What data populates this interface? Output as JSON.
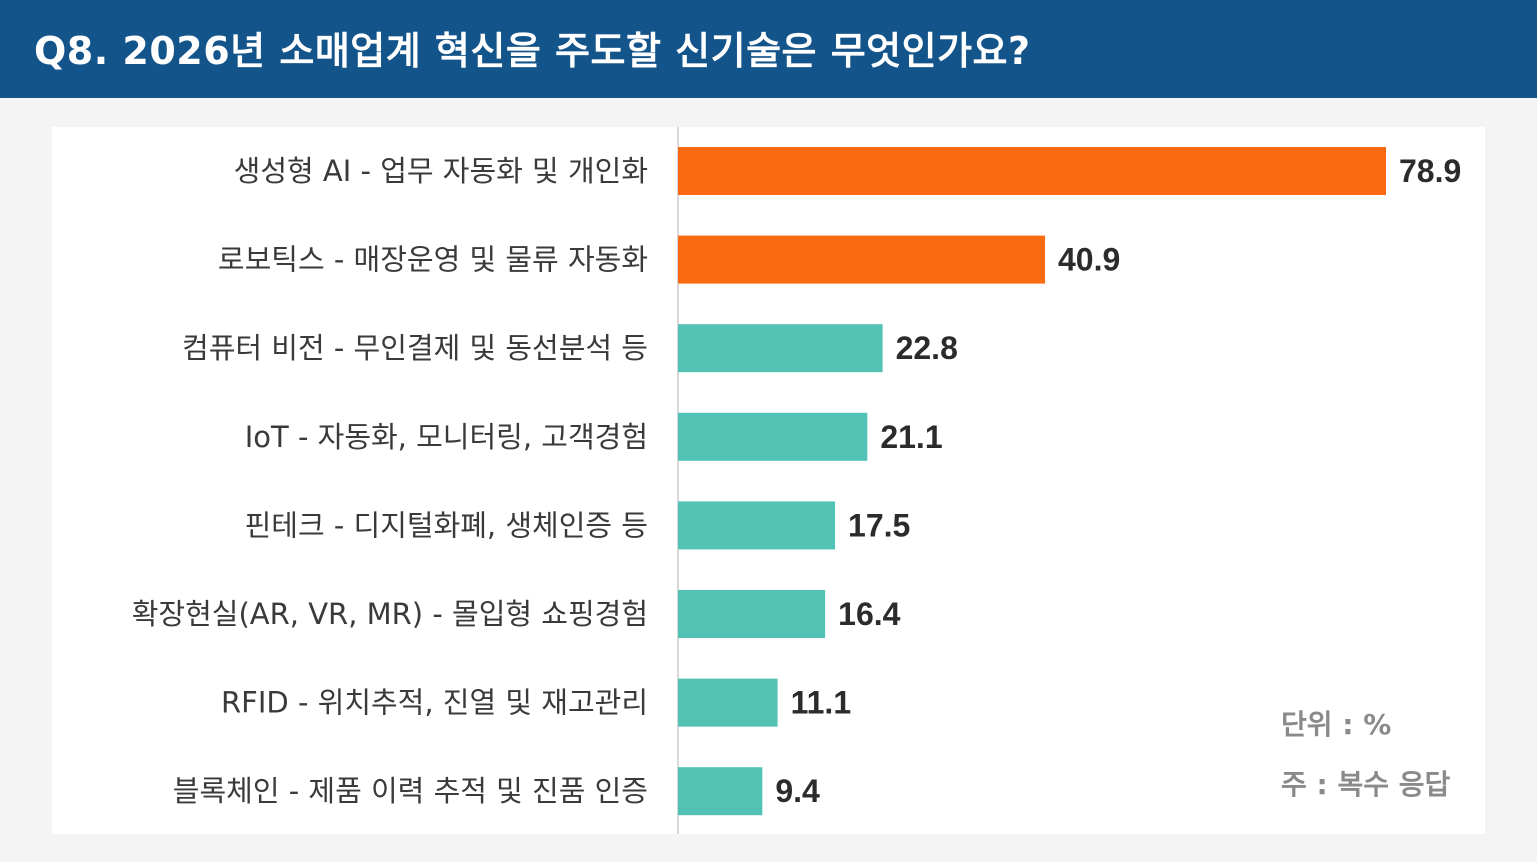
{
  "header": {
    "title": "Q8. 2026년 소매업계 혁신을 주도할 신기술은 무엇인가요?"
  },
  "notes": {
    "unit": "단위 : %",
    "multi": "주 : 복수 응답"
  },
  "colors": {
    "header_bg": "#13548a",
    "highlight_bar": "#fa6a10",
    "normal_bar": "#52c2b4"
  },
  "chart_data": {
    "type": "bar",
    "orientation": "horizontal",
    "unit": "%",
    "categories": [
      "생성형 AI - 업무 자동화 및 개인화",
      "로보틱스 - 매장운영 및 물류 자동화",
      "컴퓨터 비전 - 무인결제 및 동선분석 등",
      "IoT - 자동화, 모니터링, 고객경험",
      "핀테크 - 디지털화폐, 생체인증 등",
      "확장현실(AR, VR, MR) - 몰입형 쇼핑경험",
      "RFID - 위치추적, 진열 및 재고관리",
      "블록체인 - 제품 이력 추적 및 진품 인증"
    ],
    "values": [
      78.9,
      40.9,
      22.8,
      21.1,
      17.5,
      16.4,
      11.1,
      9.4
    ],
    "value_labels": [
      "78.9",
      "40.9",
      "22.8",
      "21.1",
      "17.5",
      "16.4",
      "11.1",
      "9.4"
    ],
    "highlighted": [
      true,
      true,
      false,
      false,
      false,
      false,
      false,
      false
    ],
    "xlim": [
      0,
      80
    ],
    "grid": false,
    "legend": "none"
  }
}
